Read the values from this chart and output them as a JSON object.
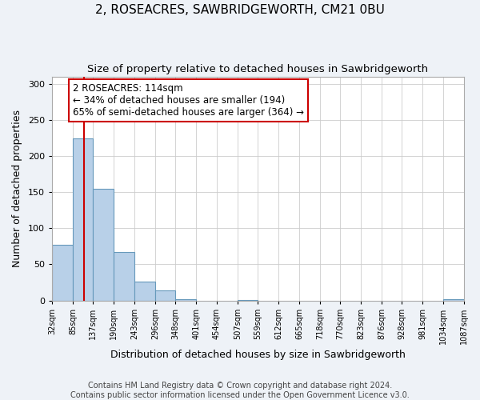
{
  "title": "2, ROSEACRES, SAWBRIDGEWORTH, CM21 0BU",
  "subtitle": "Size of property relative to detached houses in Sawbridgeworth",
  "xlabel": "Distribution of detached houses by size in Sawbridgeworth",
  "ylabel": "Number of detached properties",
  "bin_edges": [
    32,
    85,
    137,
    190,
    243,
    296,
    348,
    401,
    454,
    507,
    559,
    612,
    665,
    718,
    770,
    823,
    876,
    928,
    981,
    1034,
    1087
  ],
  "bin_heights": [
    77,
    224,
    155,
    67,
    26,
    14,
    2,
    0,
    0,
    1,
    0,
    0,
    0,
    0,
    0,
    0,
    0,
    0,
    0,
    2
  ],
  "bar_color": "#b8d0e8",
  "bar_edge_color": "#6699bb",
  "property_line_x": 114,
  "property_line_color": "#cc0000",
  "annotation_line1": "2 ROSEACRES: 114sqm",
  "annotation_line2": "← 34% of detached houses are smaller (194)",
  "annotation_line3": "65% of semi-detached houses are larger (364) →",
  "annotation_box_color": "#ffffff",
  "annotation_box_edge_color": "#cc0000",
  "ylim": [
    0,
    310
  ],
  "yticks": [
    0,
    50,
    100,
    150,
    200,
    250,
    300
  ],
  "tick_labels": [
    "32sqm",
    "85sqm",
    "137sqm",
    "190sqm",
    "243sqm",
    "296sqm",
    "348sqm",
    "401sqm",
    "454sqm",
    "507sqm",
    "559sqm",
    "612sqm",
    "665sqm",
    "718sqm",
    "770sqm",
    "823sqm",
    "876sqm",
    "928sqm",
    "981sqm",
    "1034sqm",
    "1087sqm"
  ],
  "footer_line1": "Contains HM Land Registry data © Crown copyright and database right 2024.",
  "footer_line2": "Contains public sector information licensed under the Open Government Licence v3.0.",
  "background_color": "#eef2f7",
  "plot_background_color": "#ffffff",
  "grid_color": "#cccccc",
  "title_fontsize": 11,
  "subtitle_fontsize": 9.5,
  "axis_label_fontsize": 9,
  "tick_fontsize": 7,
  "annotation_fontsize": 8.5,
  "footer_fontsize": 7
}
